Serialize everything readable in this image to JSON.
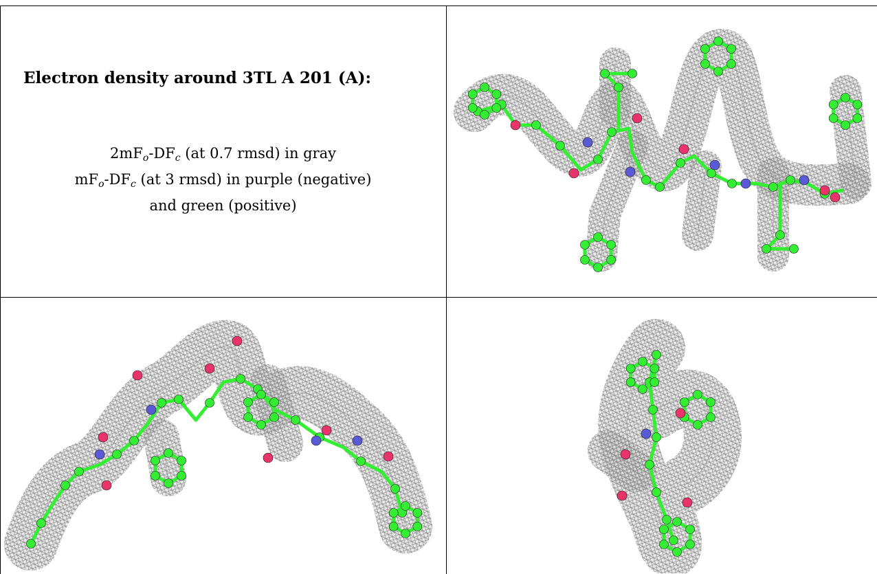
{
  "caption": {
    "title": "Electron density around 3TL A 201 (A):",
    "line1": {
      "pre": "2mF",
      "sub1": "o",
      "mid": "-DF",
      "sub2": "c",
      "post": " (at 0.7 rmsd) in gray"
    },
    "line2": {
      "pre": "mF",
      "sub1": "o",
      "mid": "-DF",
      "sub2": "c",
      "post": " (at 3 rmsd) in purple (negative)"
    },
    "line3": "and green (positive)"
  },
  "colors": {
    "mesh": "#8a8a8a",
    "carbon": "#33ee33",
    "oxygen": "#e8336b",
    "nitrogen": "#5a5ad6",
    "border": "#000000"
  },
  "panels": [
    {
      "view": "top-right"
    },
    {
      "view": "bottom-left"
    },
    {
      "view": "bottom-right"
    }
  ]
}
